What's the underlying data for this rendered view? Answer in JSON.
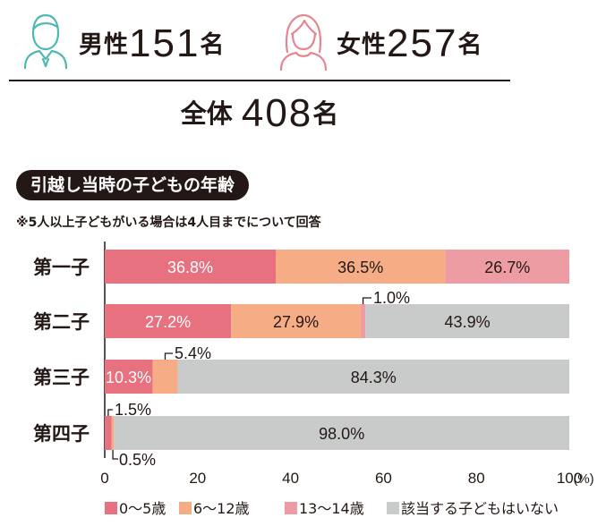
{
  "header": {
    "male": {
      "label": "男性",
      "count": "151",
      "unit": "名"
    },
    "female": {
      "label": "女性",
      "count": "257",
      "unit": "名"
    },
    "total": {
      "label": "全体",
      "count": "408",
      "unit": "名"
    }
  },
  "section_title": "引越し当時の子どもの年齢",
  "footnote": "※5人以上子どもがいる場合は4人目までについて回答",
  "colors": {
    "age_0_5": "#e8717f",
    "age_6_12": "#f6ad86",
    "age_13_14": "#ee9ca3",
    "none": "#c9caca",
    "male_icon": "#4fb7b0",
    "female_icon": "#e8848f"
  },
  "chart_data": {
    "type": "bar",
    "orientation": "horizontal",
    "stacked": true,
    "categories": [
      "第一子",
      "第二子",
      "第三子",
      "第四子"
    ],
    "series": [
      {
        "name": "0〜5歳",
        "values": [
          36.8,
          27.2,
          10.3,
          1.5
        ]
      },
      {
        "name": "6〜12歳",
        "values": [
          36.5,
          27.9,
          5.4,
          0.5
        ]
      },
      {
        "name": "13〜14歳",
        "values": [
          26.7,
          1.0,
          0,
          0
        ]
      },
      {
        "name": "該当する子どもはいない",
        "values": [
          0,
          43.9,
          84.3,
          98.0
        ]
      }
    ],
    "data_labels": [
      [
        "36.8%",
        "36.5%",
        "26.7%",
        ""
      ],
      [
        "27.2%",
        "27.9%",
        "1.0%",
        "43.9%"
      ],
      [
        "10.3%",
        "5.4%",
        "",
        "84.3%"
      ],
      [
        "1.5%",
        "0.5%",
        "",
        "98.0%"
      ]
    ],
    "xlim": [
      0,
      100
    ],
    "xticks": [
      "0",
      "20",
      "40",
      "60",
      "80",
      "100"
    ],
    "xunit": "(%)",
    "legend_position": "bottom"
  }
}
